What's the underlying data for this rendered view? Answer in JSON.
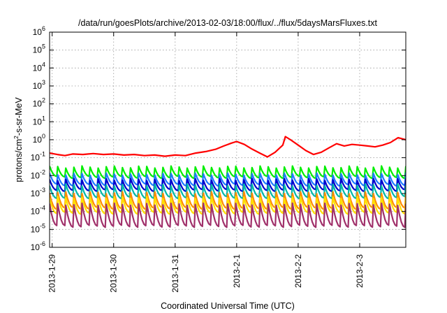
{
  "chart_data": {
    "type": "line",
    "title": "/data/run/goesPlots/archive/2013-02-03/18:00/flux/../flux/5daysMarsFluxes.txt",
    "xlabel": "Coordinated Universal Time (UTC)",
    "ylabel": {
      "before": "protons/cm",
      "sup": "2",
      "after": "-s-sr-MeV"
    },
    "y_scale": "log",
    "ylim": [
      1e-06,
      1000000.0
    ],
    "y_ticks": [
      {
        "value": 1e-06,
        "base": "10",
        "exp": "-6"
      },
      {
        "value": 1e-05,
        "base": "10",
        "exp": "-5"
      },
      {
        "value": 0.0001,
        "base": "10",
        "exp": "-4"
      },
      {
        "value": 0.001,
        "base": "10",
        "exp": "-3"
      },
      {
        "value": 0.01,
        "base": "10",
        "exp": "-2"
      },
      {
        "value": 0.1,
        "base": "10",
        "exp": "-1"
      },
      {
        "value": 1,
        "base": "10",
        "exp": "0"
      },
      {
        "value": 10,
        "base": "10",
        "exp": "1"
      },
      {
        "value": 100,
        "base": "10",
        "exp": "2"
      },
      {
        "value": 1000,
        "base": "10",
        "exp": "3"
      },
      {
        "value": 10000,
        "base": "10",
        "exp": "4"
      },
      {
        "value": 100000,
        "base": "10",
        "exp": "5"
      },
      {
        "value": 1000000,
        "base": "10",
        "exp": "6"
      }
    ],
    "xlim": [
      "2013-01-28 23:00",
      "2013-02-03 18:00"
    ],
    "x_ticks": [
      {
        "label": "2013-1-29",
        "date": "2013-01-29 00:00"
      },
      {
        "label": "2013-1-30",
        "date": "2013-01-30 00:00"
      },
      {
        "label": "2013-1-31",
        "date": "2013-01-31 00:00"
      },
      {
        "label": "2013-2-1",
        "date": "2013-02-01 00:00"
      },
      {
        "label": "2013-2-2",
        "date": "2013-02-02 00:00"
      },
      {
        "label": "2013-2-3",
        "date": "2013-02-03 00:00"
      }
    ],
    "grid": true,
    "legend": "none",
    "series": [
      {
        "color": "#ff0000",
        "x": [
          "2013-01-28 23:00",
          "2013-01-29 02:00",
          "2013-01-29 05:00",
          "2013-01-29 08:00",
          "2013-01-29 12:00",
          "2013-01-29 16:00",
          "2013-01-29 20:00",
          "2013-01-30 00:00",
          "2013-01-30 04:00",
          "2013-01-30 08:00",
          "2013-01-30 12:00",
          "2013-01-30 16:00",
          "2013-01-30 20:00",
          "2013-01-31 00:00",
          "2013-01-31 04:00",
          "2013-01-31 08:00",
          "2013-01-31 12:00",
          "2013-01-31 16:00",
          "2013-01-31 19:00",
          "2013-01-31 22:00",
          "2013-02-01 00:00",
          "2013-02-01 03:00",
          "2013-02-01 06:00",
          "2013-02-01 09:00",
          "2013-02-01 12:00",
          "2013-02-01 15:00",
          "2013-02-01 18:00",
          "2013-02-01 19:00",
          "2013-02-01 21:00",
          "2013-02-02 00:00",
          "2013-02-02 03:00",
          "2013-02-02 06:00",
          "2013-02-02 09:00",
          "2013-02-02 12:00",
          "2013-02-02 15:00",
          "2013-02-02 18:00",
          "2013-02-02 21:00",
          "2013-02-03 00:00",
          "2013-02-03 03:00",
          "2013-02-03 06:00",
          "2013-02-03 09:00",
          "2013-02-03 12:00",
          "2013-02-03 15:00",
          "2013-02-03 18:00"
        ],
        "y": [
          0.18,
          0.15,
          0.13,
          0.16,
          0.15,
          0.17,
          0.15,
          0.16,
          0.14,
          0.15,
          0.13,
          0.14,
          0.12,
          0.14,
          0.13,
          0.18,
          0.22,
          0.3,
          0.45,
          0.65,
          0.8,
          0.55,
          0.3,
          0.18,
          0.11,
          0.2,
          0.5,
          1.5,
          1.0,
          0.5,
          0.25,
          0.15,
          0.2,
          0.35,
          0.6,
          0.45,
          0.55,
          0.5,
          0.45,
          0.4,
          0.5,
          0.7,
          1.3,
          1.0
        ]
      },
      {
        "color": "#00ee00",
        "peak": 0.03,
        "trough": 0.008
      },
      {
        "color": "#1e7bff",
        "peak": 0.012,
        "trough": 0.003
      },
      {
        "color": "#0000cc",
        "peak": 0.006,
        "trough": 0.0015
      },
      {
        "color": "#00b8a8",
        "peak": 0.003,
        "trough": 0.0006
      },
      {
        "color": "#ff8c00",
        "peak": 0.0011,
        "trough": 0.00015
      },
      {
        "color": "#ffe000",
        "peak": 0.0006,
        "trough": 8e-05
      },
      {
        "color": "#a0306a",
        "peak": 0.00025,
        "trough": 1.5e-05
      }
    ],
    "sawtooth_cycles": 44
  }
}
